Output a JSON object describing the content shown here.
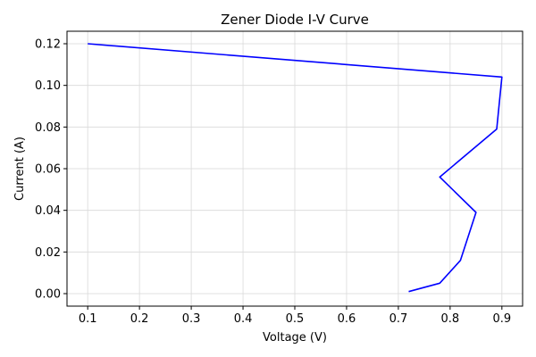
{
  "chart_data": {
    "type": "line",
    "title": "Zener Diode I-V Curve",
    "xlabel": "Voltage (V)",
    "ylabel": "Current (A)",
    "xlim": [
      0.06,
      0.94
    ],
    "ylim": [
      -0.006,
      0.126
    ],
    "grid": true,
    "x_ticks": [
      0.1,
      0.2,
      0.3,
      0.4,
      0.5,
      0.6,
      0.7,
      0.8,
      0.9
    ],
    "x_tick_labels": [
      "0.1",
      "0.2",
      "0.3",
      "0.4",
      "0.5",
      "0.6",
      "0.7",
      "0.8",
      "0.9"
    ],
    "y_ticks": [
      0.0,
      0.02,
      0.04,
      0.06,
      0.08,
      0.1,
      0.12
    ],
    "y_tick_labels": [
      "0.00",
      "0.02",
      "0.04",
      "0.06",
      "0.08",
      "0.10",
      "0.12"
    ],
    "series": [
      {
        "color": "#0000ff",
        "x": [
          0.72,
          0.78,
          0.82,
          0.85,
          0.78,
          0.89,
          0.9,
          0.1
        ],
        "y": [
          0.001,
          0.005,
          0.016,
          0.039,
          0.056,
          0.079,
          0.104,
          0.12
        ]
      }
    ]
  }
}
